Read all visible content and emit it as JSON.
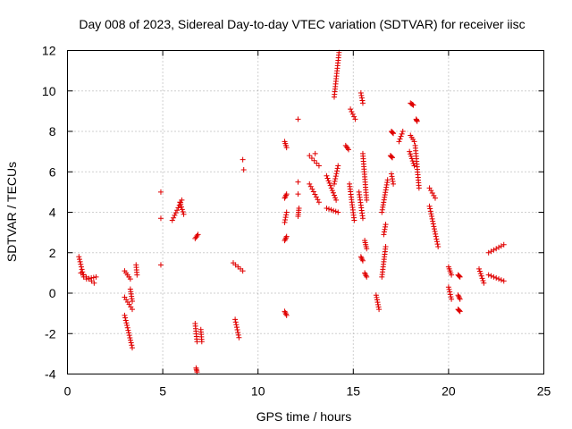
{
  "chart_data": {
    "type": "scatter",
    "title": "Day 008 of 2023, Sidereal Day-to-day VTEC variation (SDTVAR) for receiver iisc",
    "xlabel": "GPS time / hours",
    "ylabel": "SDTVAR / TECUs",
    "xlim": [
      0,
      25
    ],
    "ylim": [
      -4,
      12
    ],
    "xticks": [
      "0",
      "5",
      "10",
      "15",
      "20",
      "25"
    ],
    "yticks": [
      "-4",
      "-2",
      "0",
      "2",
      "4",
      "6",
      "8",
      "10",
      "12"
    ],
    "grid": true,
    "marker": "+",
    "color": "#e00000",
    "arcs": [
      {
        "x0": 0.6,
        "x1": 0.85,
        "y0": 1.8,
        "y1": 0.8
      },
      {
        "x0": 0.7,
        "x1": 1.4,
        "y0": 1.0,
        "y1": 0.5
      },
      {
        "x0": 1.0,
        "x1": 1.5,
        "y0": 0.7,
        "y1": 0.8
      },
      {
        "x0": 3.0,
        "x1": 3.3,
        "y0": 1.1,
        "y1": 0.7
      },
      {
        "x0": 3.0,
        "x1": 3.4,
        "y0": -1.1,
        "y1": -2.7
      },
      {
        "x0": 3.0,
        "x1": 3.4,
        "y0": -0.2,
        "y1": -0.8
      },
      {
        "x0": 3.3,
        "x1": 3.4,
        "y0": 0.2,
        "y1": -0.4
      },
      {
        "x0": 3.6,
        "x1": 3.65,
        "y0": 1.4,
        "y1": 0.9
      },
      {
        "x0": 5.5,
        "x1": 6.0,
        "y0": 3.6,
        "y1": 4.6
      },
      {
        "x0": 5.9,
        "x1": 6.1,
        "y0": 4.5,
        "y1": 3.9
      },
      {
        "x0": 6.7,
        "x1": 6.85,
        "y0": 2.7,
        "y1": 2.9
      },
      {
        "x0": 6.7,
        "x1": 6.8,
        "y0": -1.5,
        "y1": -2.4
      },
      {
        "x0": 6.75,
        "x1": 6.8,
        "y0": -3.7,
        "y1": -3.9
      },
      {
        "x0": 7.0,
        "x1": 7.05,
        "y0": -1.8,
        "y1": -2.4
      },
      {
        "x0": 8.7,
        "x1": 9.2,
        "y0": 1.5,
        "y1": 1.1
      },
      {
        "x0": 8.8,
        "x1": 9.0,
        "y0": -1.3,
        "y1": -2.2
      },
      {
        "x0": 11.4,
        "x1": 11.5,
        "y0": 7.5,
        "y1": 7.2
      },
      {
        "x0": 11.4,
        "x1": 11.5,
        "y0": 4.7,
        "y1": 4.9
      },
      {
        "x0": 11.4,
        "x1": 11.5,
        "y0": 3.5,
        "y1": 4.0
      },
      {
        "x0": 11.4,
        "x1": 11.5,
        "y0": 2.6,
        "y1": 2.8
      },
      {
        "x0": 11.4,
        "x1": 11.5,
        "y0": -0.9,
        "y1": -1.1
      },
      {
        "x0": 12.1,
        "x1": 12.15,
        "y0": 3.8,
        "y1": 4.2
      },
      {
        "x0": 12.7,
        "x1": 13.2,
        "y0": 6.8,
        "y1": 6.3
      },
      {
        "x0": 12.7,
        "x1": 13.2,
        "y0": 5.4,
        "y1": 4.5
      },
      {
        "x0": 13.6,
        "x1": 14.1,
        "y0": 5.8,
        "y1": 4.6
      },
      {
        "x0": 13.6,
        "x1": 14.2,
        "y0": 4.2,
        "y1": 4.0
      },
      {
        "x0": 14.0,
        "x1": 14.25,
        "y0": 9.7,
        "y1": 11.9
      },
      {
        "x0": 14.0,
        "x1": 14.2,
        "y0": 5.4,
        "y1": 6.3
      },
      {
        "x0": 14.6,
        "x1": 14.75,
        "y0": 7.3,
        "y1": 7.1
      },
      {
        "x0": 14.85,
        "x1": 15.1,
        "y0": 9.1,
        "y1": 8.6
      },
      {
        "x0": 14.8,
        "x1": 15.05,
        "y0": 5.4,
        "y1": 3.6
      },
      {
        "x0": 15.4,
        "x1": 15.5,
        "y0": 9.9,
        "y1": 9.4
      },
      {
        "x0": 15.3,
        "x1": 15.5,
        "y0": 5.0,
        "y1": 3.7
      },
      {
        "x0": 15.5,
        "x1": 15.7,
        "y0": 6.9,
        "y1": 4.6
      },
      {
        "x0": 15.4,
        "x1": 15.5,
        "y0": 1.8,
        "y1": 1.6
      },
      {
        "x0": 15.6,
        "x1": 15.7,
        "y0": 2.6,
        "y1": 2.2
      },
      {
        "x0": 15.6,
        "x1": 15.7,
        "y0": 1.0,
        "y1": 0.8
      },
      {
        "x0": 16.2,
        "x1": 16.35,
        "y0": -0.1,
        "y1": -0.8
      },
      {
        "x0": 16.5,
        "x1": 16.7,
        "y0": 0.8,
        "y1": 2.3
      },
      {
        "x0": 16.6,
        "x1": 16.7,
        "y0": 2.9,
        "y1": 3.4
      },
      {
        "x0": 16.5,
        "x1": 16.8,
        "y0": 4.0,
        "y1": 5.6
      },
      {
        "x0": 17.0,
        "x1": 17.1,
        "y0": 8.0,
        "y1": 7.9
      },
      {
        "x0": 16.95,
        "x1": 17.05,
        "y0": 6.8,
        "y1": 6.7
      },
      {
        "x0": 17.0,
        "x1": 17.1,
        "y0": 5.9,
        "y1": 5.4
      },
      {
        "x0": 17.4,
        "x1": 17.6,
        "y0": 7.5,
        "y1": 8.0
      },
      {
        "x0": 18.0,
        "x1": 18.15,
        "y0": 9.4,
        "y1": 9.3
      },
      {
        "x0": 18.0,
        "x1": 18.2,
        "y0": 7.8,
        "y1": 7.5
      },
      {
        "x0": 17.95,
        "x1": 18.2,
        "y0": 7.0,
        "y1": 6.3
      },
      {
        "x0": 18.3,
        "x1": 18.35,
        "y0": 8.6,
        "y1": 8.5
      },
      {
        "x0": 18.25,
        "x1": 18.45,
        "y0": 7.3,
        "y1": 5.2
      },
      {
        "x0": 19.0,
        "x1": 19.3,
        "y0": 5.2,
        "y1": 4.7
      },
      {
        "x0": 19.0,
        "x1": 19.45,
        "y0": 4.3,
        "y1": 2.3
      },
      {
        "x0": 20.0,
        "x1": 20.15,
        "y0": 1.3,
        "y1": 0.9
      },
      {
        "x0": 20.0,
        "x1": 20.15,
        "y0": 0.3,
        "y1": -0.3
      },
      {
        "x0": 20.5,
        "x1": 20.6,
        "y0": 0.9,
        "y1": 0.8
      },
      {
        "x0": 20.5,
        "x1": 20.6,
        "y0": -0.1,
        "y1": -0.3
      },
      {
        "x0": 20.5,
        "x1": 20.6,
        "y0": -0.8,
        "y1": -0.9
      },
      {
        "x0": 21.6,
        "x1": 21.85,
        "y0": 1.2,
        "y1": 0.5
      },
      {
        "x0": 22.1,
        "x1": 22.9,
        "y0": 2.0,
        "y1": 2.4
      },
      {
        "x0": 22.1,
        "x1": 22.9,
        "y0": 0.9,
        "y1": 0.6
      }
    ],
    "points": [
      {
        "x": 4.9,
        "y": 5.0
      },
      {
        "x": 4.9,
        "y": 3.7
      },
      {
        "x": 4.9,
        "y": 1.4
      },
      {
        "x": 9.2,
        "y": 6.6
      },
      {
        "x": 9.25,
        "y": 6.1
      },
      {
        "x": 12.1,
        "y": 8.6
      },
      {
        "x": 12.1,
        "y": 5.5
      },
      {
        "x": 12.1,
        "y": 4.9
      },
      {
        "x": 13.0,
        "y": 6.9
      }
    ]
  }
}
